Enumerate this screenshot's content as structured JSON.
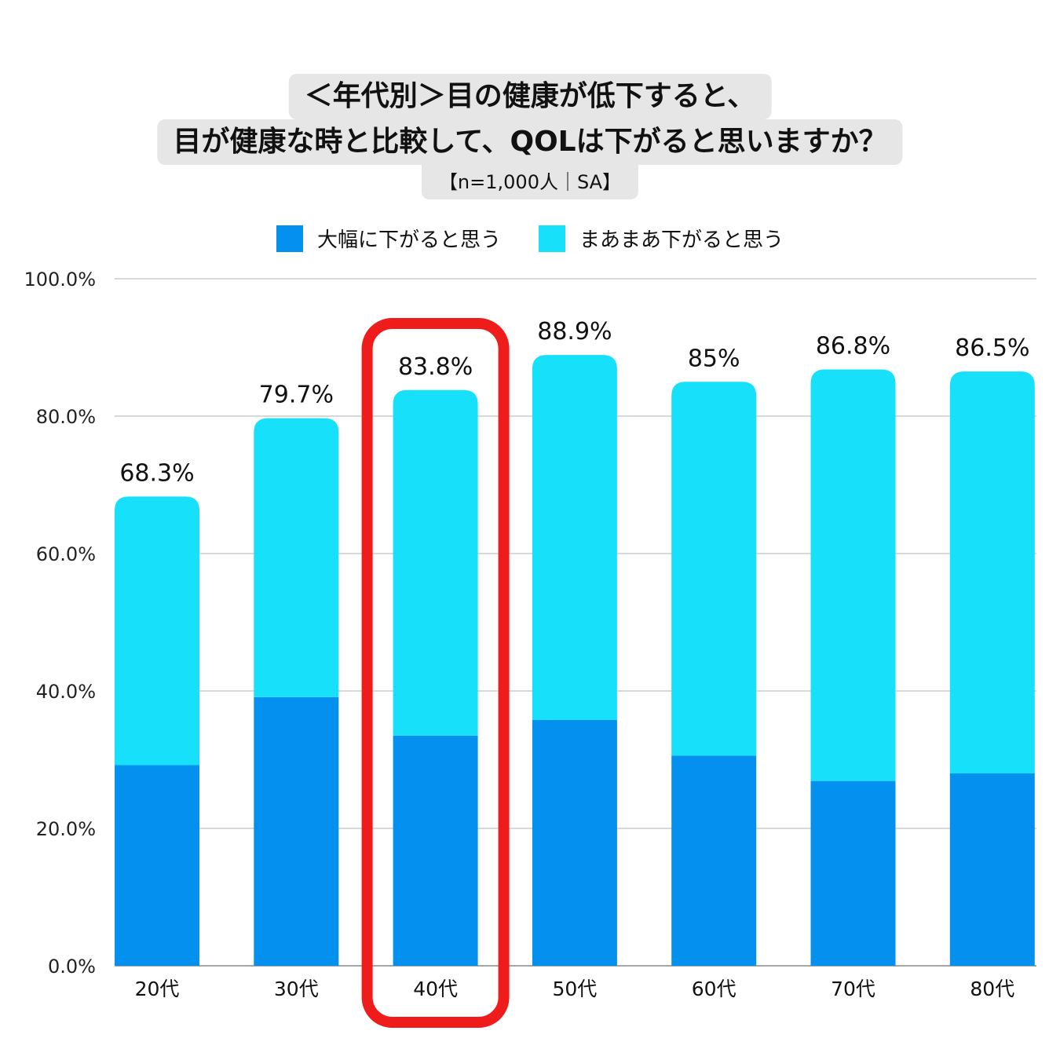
{
  "title": {
    "line1": "＜年代別＞目の健康が低下すると、",
    "line2": "目が健康な時と比較して、QOLは下がると思いますか？",
    "subtitle": "【n=1,000人｜SA】"
  },
  "colors": {
    "series1": "#0390ef",
    "series2": "#16e0fa",
    "highlight": "#ef1c1c",
    "grid": "#cccccc"
  },
  "chart_data": {
    "type": "bar",
    "stacked": true,
    "categories": [
      "20代",
      "30代",
      "40代",
      "50代",
      "60代",
      "70代",
      "80代"
    ],
    "series": [
      {
        "name": "大幅に下がると思う",
        "values": [
          29.2,
          39.1,
          33.5,
          35.8,
          30.6,
          26.9,
          28.0
        ]
      },
      {
        "name": "まあまあ下がると思う",
        "values": [
          39.1,
          40.6,
          50.3,
          53.1,
          54.4,
          59.9,
          58.5
        ]
      }
    ],
    "totals_labels": [
      "68.3%",
      "79.7%",
      "83.8%",
      "88.9%",
      "85%",
      "86.8%",
      "86.5%"
    ],
    "totals": [
      68.3,
      79.7,
      83.8,
      88.9,
      85,
      86.8,
      86.5
    ],
    "ylim": [
      0,
      100
    ],
    "yticks": [
      0,
      20,
      40,
      60,
      80,
      100
    ],
    "ytick_labels": [
      "0.0%",
      "20.0%",
      "40.0%",
      "60.0%",
      "80.0%",
      "100.0%"
    ],
    "grid": true,
    "legend_position": "top",
    "highlighted_category": "40代"
  }
}
